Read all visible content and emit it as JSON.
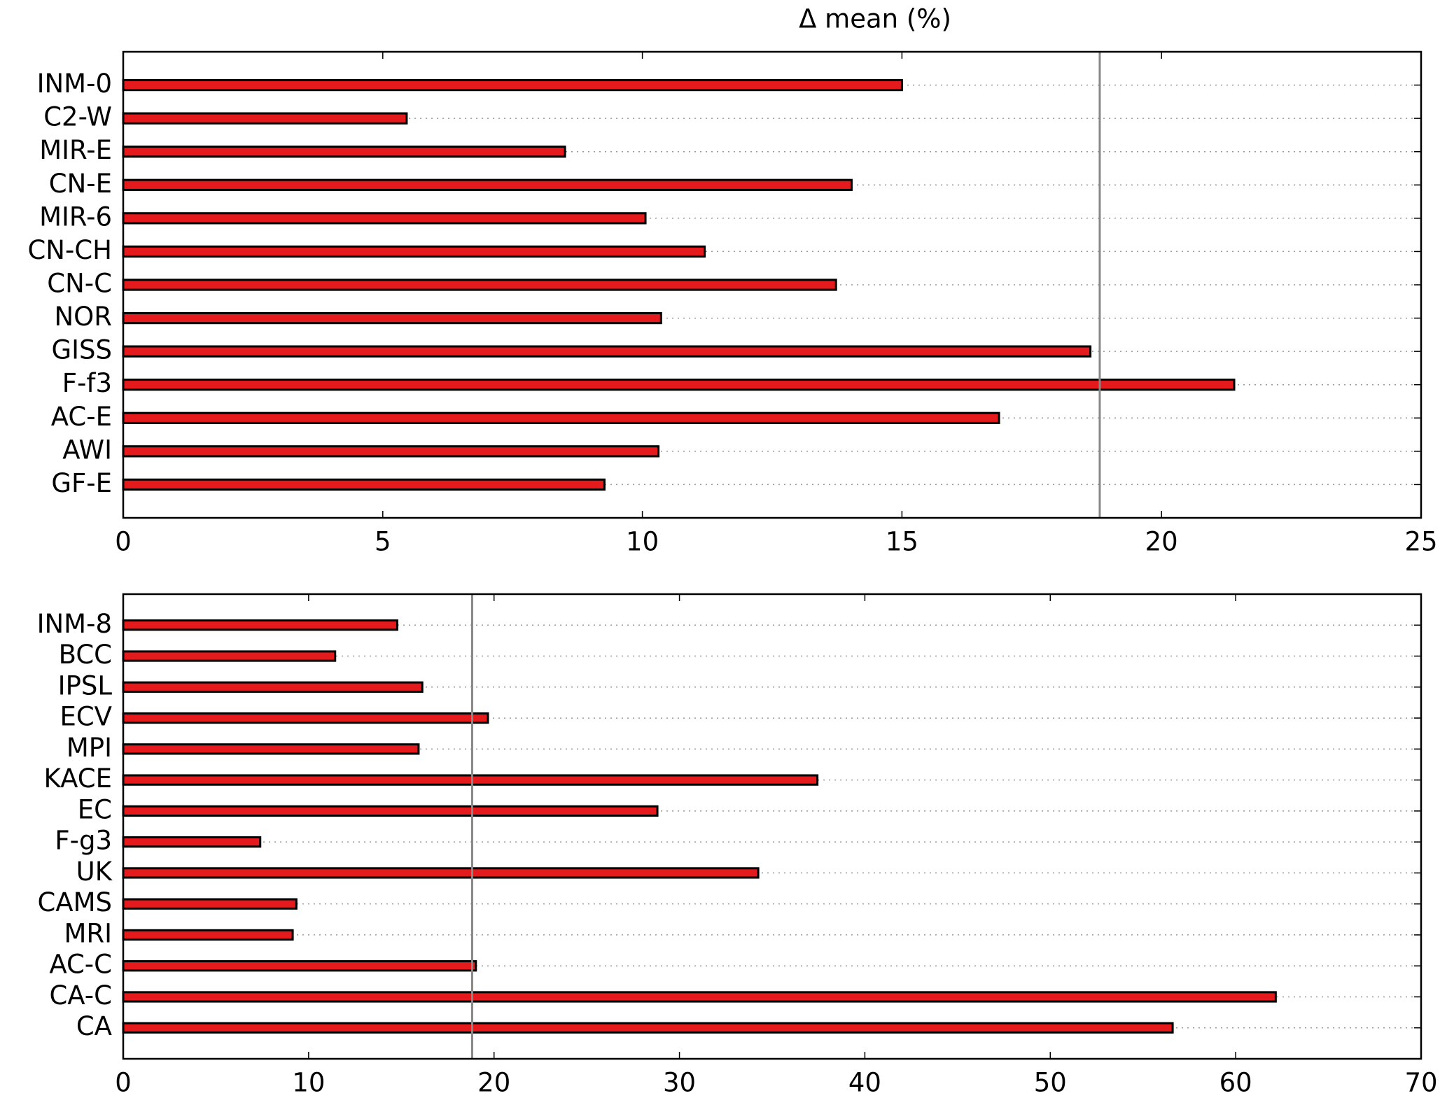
{
  "chart_data": [
    {
      "type": "barh",
      "title": "Δ mean (%)",
      "categories": [
        "INM-0",
        "C2-W",
        "MIR-E",
        "CN-E",
        "MIR-6",
        "CN-CH",
        "CN-C",
        "NOR",
        "GISS",
        "F-f3",
        "AC-E",
        "AWI",
        "GF-E"
      ],
      "values": [
        15.0,
        5.46,
        8.51,
        14.03,
        10.06,
        11.2,
        13.73,
        10.36,
        18.63,
        21.4,
        16.87,
        10.31,
        9.27
      ],
      "color": "#e41a1c",
      "xlim": [
        0,
        25
      ],
      "xticks": [
        0,
        5,
        10,
        15,
        20,
        25
      ],
      "grid": true,
      "vline": 18.81
    },
    {
      "type": "barh",
      "categories": [
        "INM-8",
        "BCC",
        "IPSL",
        "ECV",
        "MPI",
        "KACE",
        "EC",
        "F-g3",
        "UK",
        "CAMS",
        "MRI",
        "AC-C",
        "CA-C",
        "CA"
      ],
      "values": [
        14.78,
        11.43,
        16.13,
        19.67,
        15.93,
        37.44,
        28.81,
        7.39,
        34.25,
        9.34,
        9.14,
        19.02,
        62.16,
        56.6
      ],
      "color": "#e41a1c",
      "xlim": [
        0,
        70
      ],
      "xticks": [
        0,
        10,
        20,
        30,
        40,
        50,
        60,
        70
      ],
      "grid": true,
      "vline": 18.82
    }
  ]
}
